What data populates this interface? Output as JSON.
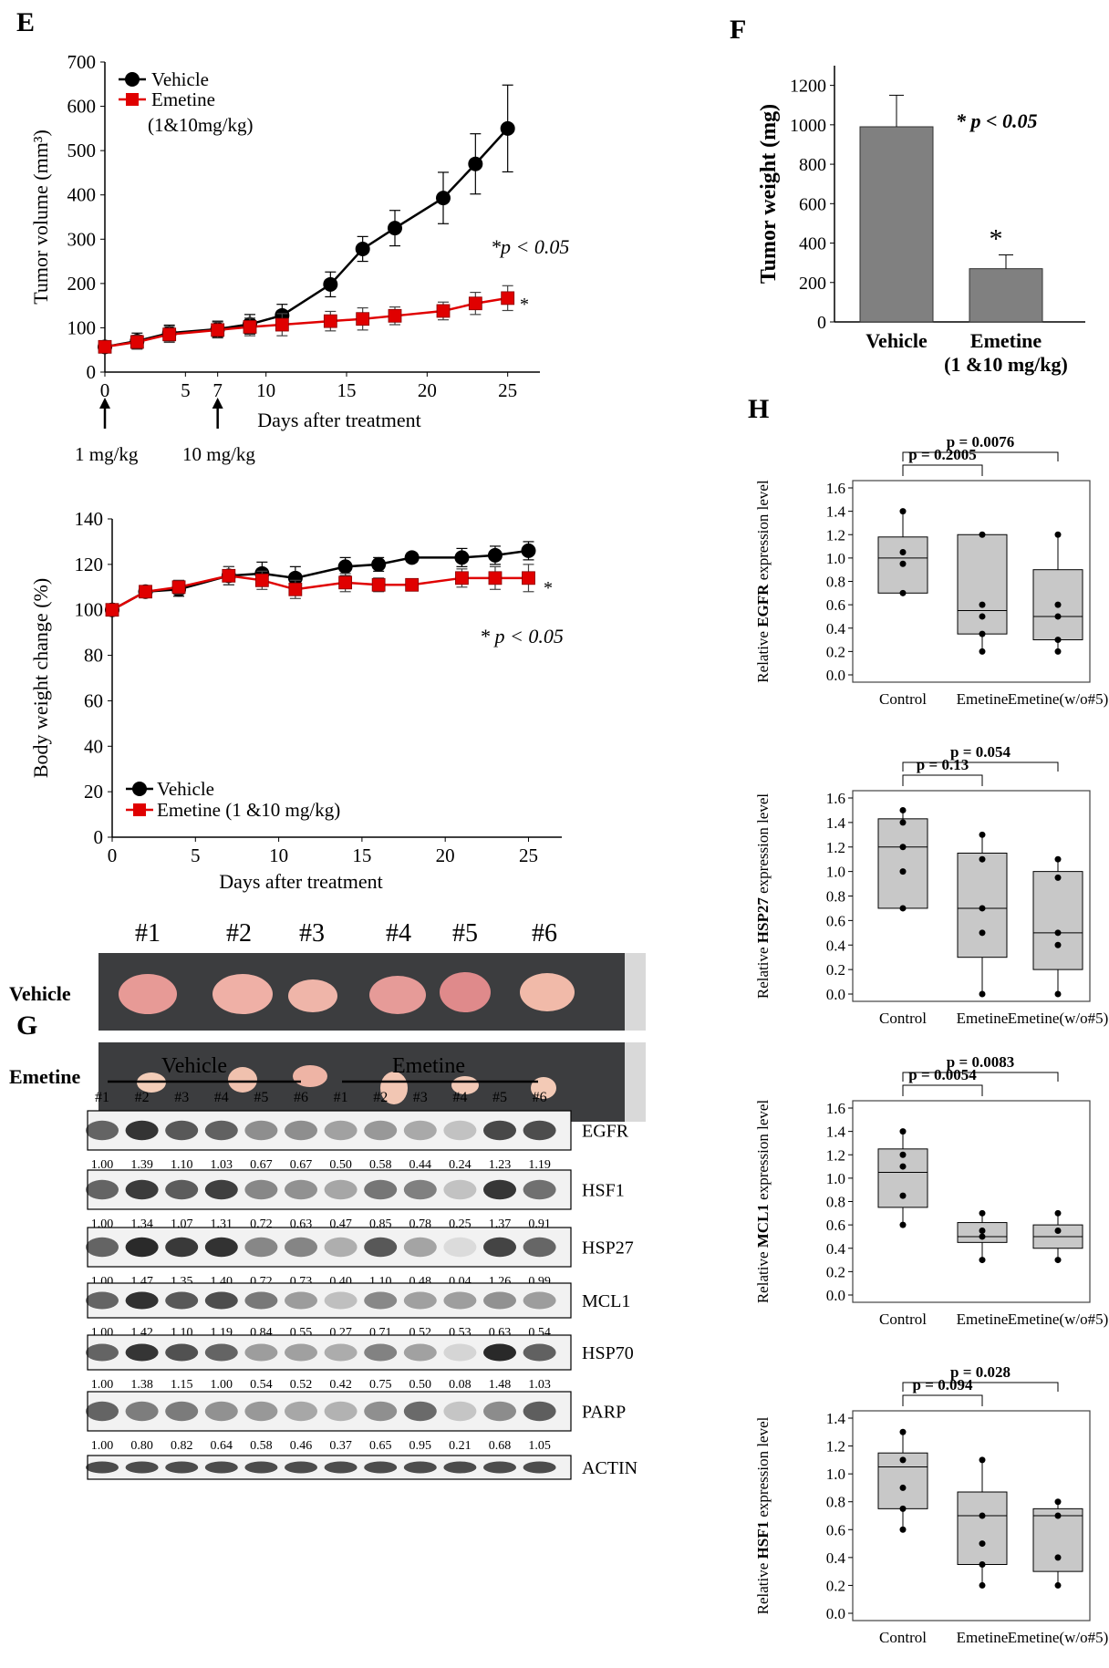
{
  "panels": {
    "E": "E",
    "F": "F",
    "G": "G",
    "H": "H"
  },
  "chart_data": [
    {
      "id": "tumor_volume",
      "type": "line",
      "title": "",
      "xlabel": "Days after treatment",
      "ylabel": "Tumor volume (mm³)",
      "xlim": [
        0,
        27
      ],
      "ylim": [
        0,
        700
      ],
      "xticks": [
        0,
        5,
        7,
        10,
        15,
        20,
        25
      ],
      "yticks": [
        0,
        100,
        200,
        300,
        400,
        500,
        600,
        700
      ],
      "x": [
        0,
        2,
        4,
        7,
        9,
        11,
        14,
        16,
        18,
        21,
        23,
        25
      ],
      "series": [
        {
          "name": "Vehicle",
          "color": "#000000",
          "marker": "circle",
          "values": [
            57,
            70,
            88,
            97,
            108,
            128,
            198,
            278,
            325,
            393,
            470,
            550
          ],
          "errors": [
            12,
            18,
            18,
            18,
            22,
            25,
            28,
            28,
            40,
            58,
            68,
            98
          ]
        },
        {
          "name": "Emetine",
          "color": "#e00000",
          "marker": "square",
          "values": [
            57,
            68,
            85,
            95,
            102,
            107,
            115,
            120,
            127,
            138,
            155,
            167
          ],
          "errors": [
            10,
            15,
            18,
            18,
            20,
            25,
            22,
            25,
            20,
            20,
            25,
            28
          ]
        }
      ],
      "legend": [
        "Vehicle",
        "Emetine",
        "(1&10mg/kg)"
      ],
      "annotation": "*p < 0.05",
      "star": "*",
      "arrows": [
        "1 mg/kg",
        "10 mg/kg"
      ]
    },
    {
      "id": "tumor_weight",
      "type": "bar",
      "title": "",
      "ylabel": "Tumor weight (mg)",
      "categories": [
        "Vehicle",
        "Emetine\n(1 &10 mg/kg)"
      ],
      "category_lines": [
        [
          "Vehicle"
        ],
        [
          "Emetine",
          "(1 &10 mg/kg)"
        ]
      ],
      "values": [
        990,
        270
      ],
      "errors": [
        160,
        70
      ],
      "ylim": [
        0,
        1300
      ],
      "yticks": [
        0,
        200,
        400,
        600,
        800,
        1000,
        1200
      ],
      "annotation": "* p < 0.05",
      "star": "*",
      "color": "#808080"
    },
    {
      "id": "body_weight",
      "type": "line",
      "xlabel": "Days after treatment",
      "ylabel": "Body weight change (%)",
      "xlim": [
        0,
        27
      ],
      "ylim": [
        0,
        140
      ],
      "xticks": [
        0,
        5,
        10,
        15,
        20,
        25
      ],
      "yticks": [
        0,
        20,
        40,
        60,
        80,
        100,
        120,
        140
      ],
      "x": [
        0,
        2,
        4,
        7,
        9,
        11,
        14,
        16,
        18,
        21,
        23,
        25
      ],
      "series": [
        {
          "name": "Vehicle",
          "color": "#000000",
          "marker": "circle",
          "values": [
            100,
            108,
            109,
            115,
            116,
            114,
            119,
            120,
            123,
            123,
            124,
            126
          ],
          "errors": [
            2,
            2,
            3,
            4,
            5,
            5,
            4,
            3,
            2,
            4,
            4,
            4
          ]
        },
        {
          "name": "Emetine (1 &10 mg/kg)",
          "color": "#e00000",
          "marker": "square",
          "values": [
            100,
            108,
            110,
            115,
            113,
            109,
            112,
            111,
            111,
            114,
            114,
            114
          ],
          "errors": [
            2,
            2,
            3,
            4,
            4,
            4,
            4,
            3,
            2,
            4,
            5,
            6
          ]
        }
      ],
      "legend": [
        "Vehicle",
        "Emetine (1 &10 mg/kg)"
      ],
      "annotation": "* p < 0.05",
      "star": "*"
    },
    {
      "id": "egfr_box",
      "type": "box",
      "ylabel_pre": "Relative ",
      "ylabel_bold": "EGFR",
      "ylabel_post": " expression level",
      "categories": [
        "Control",
        "Emetine",
        "Emetine(w/o#5)"
      ],
      "ylim": [
        0,
        1.6
      ],
      "yticks": [
        "0.0",
        "0.2",
        "0.4",
        "0.6",
        "0.8",
        "1.0",
        "1.2",
        "1.4",
        "1.6"
      ],
      "boxes": [
        {
          "q1": 0.7,
          "median": 1.0,
          "q3": 1.18,
          "whisker_low": 0.7,
          "whisker_high": 1.4,
          "points": [
            1.4,
            1.05,
            0.95,
            0.7
          ]
        },
        {
          "q1": 0.35,
          "median": 0.55,
          "q3": 1.2,
          "whisker_low": 0.2,
          "whisker_high": 1.2,
          "points": [
            1.2,
            0.6,
            0.5,
            0.35,
            0.2
          ]
        },
        {
          "q1": 0.3,
          "median": 0.5,
          "q3": 0.9,
          "whisker_low": 0.2,
          "whisker_high": 1.2,
          "points": [
            1.2,
            0.6,
            0.5,
            0.3,
            0.2
          ]
        }
      ],
      "comparisons": [
        {
          "label": "p = 0.2005",
          "from": 0,
          "to": 1
        },
        {
          "label": "p = 0.0076",
          "from": 0,
          "to": 2
        }
      ]
    },
    {
      "id": "hsp27_box",
      "type": "box",
      "ylabel_pre": "Relative ",
      "ylabel_bold": "HSP27",
      "ylabel_post": " expression level",
      "categories": [
        "Control",
        "Emetine",
        "Emetine(w/o#5)"
      ],
      "ylim": [
        0,
        1.6
      ],
      "yticks": [
        "0.0",
        "0.2",
        "0.4",
        "0.6",
        "0.8",
        "1.0",
        "1.2",
        "1.4",
        "1.6"
      ],
      "boxes": [
        {
          "q1": 0.7,
          "median": 1.2,
          "q3": 1.43,
          "whisker_low": 0.7,
          "whisker_high": 1.5,
          "points": [
            1.5,
            1.4,
            1.2,
            1.0,
            0.7
          ]
        },
        {
          "q1": 0.3,
          "median": 0.7,
          "q3": 1.15,
          "whisker_low": 0.0,
          "whisker_high": 1.3,
          "points": [
            1.3,
            1.1,
            0.7,
            0.5,
            0.0
          ]
        },
        {
          "q1": 0.2,
          "median": 0.5,
          "q3": 1.0,
          "whisker_low": 0.0,
          "whisker_high": 1.1,
          "points": [
            1.1,
            0.95,
            0.5,
            0.4,
            0.0
          ]
        }
      ],
      "comparisons": [
        {
          "label": "p = 0.13",
          "from": 0,
          "to": 1
        },
        {
          "label": "p = 0.054",
          "from": 0,
          "to": 2
        }
      ]
    },
    {
      "id": "mcl1_box",
      "type": "box",
      "ylabel_pre": "Relative ",
      "ylabel_bold": "MCL1",
      "ylabel_post": " expression level",
      "categories": [
        "Control",
        "Emetine",
        "Emetine(w/o#5)"
      ],
      "ylim": [
        0,
        1.6
      ],
      "yticks": [
        "0.0",
        "0.2",
        "0.4",
        "0.6",
        "0.8",
        "1.0",
        "1.2",
        "1.4",
        "1.6"
      ],
      "boxes": [
        {
          "q1": 0.75,
          "median": 1.05,
          "q3": 1.25,
          "whisker_low": 0.6,
          "whisker_high": 1.4,
          "points": [
            1.4,
            1.2,
            1.1,
            0.85,
            0.6
          ]
        },
        {
          "q1": 0.45,
          "median": 0.5,
          "q3": 0.62,
          "whisker_low": 0.3,
          "whisker_high": 0.7,
          "points": [
            0.7,
            0.55,
            0.5,
            0.3
          ]
        },
        {
          "q1": 0.4,
          "median": 0.5,
          "q3": 0.6,
          "whisker_low": 0.3,
          "whisker_high": 0.7,
          "points": [
            0.7,
            0.55,
            0.3
          ]
        }
      ],
      "comparisons": [
        {
          "label": "p = 0.0054",
          "from": 0,
          "to": 1
        },
        {
          "label": "p = 0.0083",
          "from": 0,
          "to": 2
        }
      ]
    },
    {
      "id": "hsf1_box",
      "type": "box",
      "ylabel_pre": "Relative ",
      "ylabel_bold": "HSF1",
      "ylabel_post": " expression level",
      "categories": [
        "Control",
        "Emetine",
        "Emetine(w/o#5)"
      ],
      "ylim": [
        0,
        1.4
      ],
      "yticks": [
        "0.0",
        "0.2",
        "0.4",
        "0.6",
        "0.8",
        "1.0",
        "1.2",
        "1.4"
      ],
      "boxes": [
        {
          "q1": 0.75,
          "median": 1.05,
          "q3": 1.15,
          "whisker_low": 0.6,
          "whisker_high": 1.3,
          "points": [
            1.3,
            1.1,
            0.9,
            0.75,
            0.6
          ]
        },
        {
          "q1": 0.35,
          "median": 0.7,
          "q3": 0.87,
          "whisker_low": 0.2,
          "whisker_high": 1.1,
          "points": [
            1.1,
            0.7,
            0.5,
            0.35,
            0.2
          ]
        },
        {
          "q1": 0.3,
          "median": 0.7,
          "q3": 0.75,
          "whisker_low": 0.2,
          "whisker_high": 0.8,
          "points": [
            0.8,
            0.7,
            0.4,
            0.2
          ]
        }
      ],
      "comparisons": [
        {
          "label": "p = 0.094",
          "from": 0,
          "to": 1
        },
        {
          "label": "p = 0.028",
          "from": 0,
          "to": 2
        }
      ]
    }
  ],
  "photo": {
    "numbers": [
      "#1",
      "#2",
      "#3",
      "#4",
      "#5",
      "#6"
    ],
    "rows": [
      "Vehicle",
      "Emetine"
    ]
  },
  "western": {
    "group_labels": [
      "Vehicle",
      "Emetine"
    ],
    "lanes": [
      "#1",
      "#2",
      "#3",
      "#4",
      "#5",
      "#6",
      "#1",
      "#2",
      "#3",
      "#4",
      "#5",
      "#6"
    ],
    "blots": [
      {
        "name": "EGFR",
        "values": [
          "1.00",
          "1.39",
          "1.10",
          "1.03",
          "0.67",
          "0.67",
          "0.50",
          "0.58",
          "0.44",
          "0.24",
          "1.23",
          "1.19"
        ]
      },
      {
        "name": "HSF1",
        "values": [
          "1.00",
          "1.34",
          "1.07",
          "1.31",
          "0.72",
          "0.63",
          "0.47",
          "0.85",
          "0.78",
          "0.25",
          "1.37",
          "0.91"
        ]
      },
      {
        "name": "HSP27",
        "values": [
          "1.00",
          "1.47",
          "1.35",
          "1.40",
          "0.72",
          "0.73",
          "0.40",
          "1.10",
          "0.48",
          "0.04",
          "1.26",
          "0.99"
        ]
      },
      {
        "name": "MCL1",
        "values": [
          "1.00",
          "1.42",
          "1.10",
          "1.19",
          "0.84",
          "0.55",
          "0.27",
          "0.71",
          "0.52",
          "0.53",
          "0.63",
          "0.54"
        ]
      },
      {
        "name": "HSP70",
        "values": [
          "1.00",
          "1.38",
          "1.15",
          "1.00",
          "0.54",
          "0.52",
          "0.42",
          "0.75",
          "0.50",
          "0.08",
          "1.48",
          "1.03"
        ]
      },
      {
        "name": "PARP",
        "values": [
          "1.00",
          "0.80",
          "0.82",
          "0.64",
          "0.58",
          "0.46",
          "0.37",
          "0.65",
          "0.95",
          "0.21",
          "0.68",
          "1.05"
        ]
      },
      {
        "name": "ACTIN",
        "values": []
      }
    ]
  }
}
